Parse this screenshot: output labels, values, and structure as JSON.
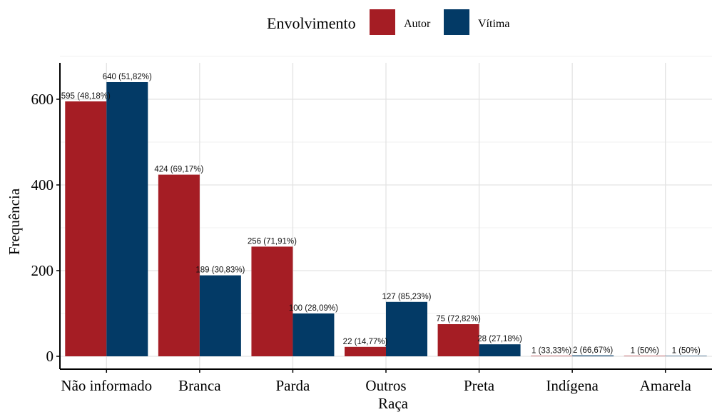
{
  "chart_data": {
    "type": "bar",
    "xlabel": "Raça",
    "ylabel": "Frequência",
    "ylim": [
      0,
      700
    ],
    "yticks": [
      0,
      200,
      400,
      600
    ],
    "grid": true,
    "legend": {
      "title": "Envolvimento",
      "placement": "top"
    },
    "categories": [
      "Não informado",
      "Branca",
      "Parda",
      "Outros",
      "Preta",
      "Indígena",
      "Amarela"
    ],
    "series": [
      {
        "name": "Autor",
        "color": "#A51D24",
        "values": [
          595,
          424,
          256,
          22,
          75,
          1,
          1
        ],
        "labels": [
          "595 (48,18%)",
          "424 (69,17%)",
          "256 (71,91%)",
          "22 (14,77%)",
          "75 (72,82%)",
          "1 (33,33%)",
          "1 (50%)"
        ]
      },
      {
        "name": "Vítima",
        "color": "#033A66",
        "values": [
          640,
          189,
          100,
          127,
          28,
          2,
          1
        ],
        "labels": [
          "640 (51,82%)",
          "189 (30,83%)",
          "100 (28,09%)",
          "127 (85,23%)",
          "28 (27,18%)",
          "2 (66,67%)",
          "1 (50%)"
        ]
      }
    ]
  }
}
